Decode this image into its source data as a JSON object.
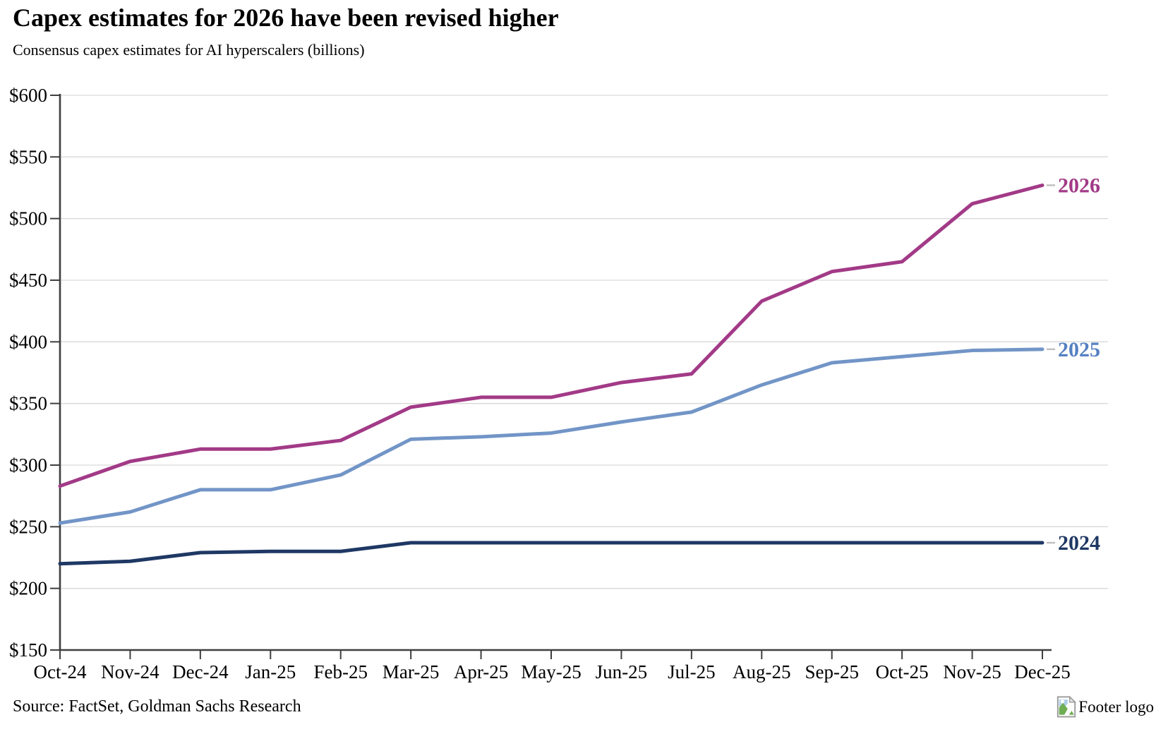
{
  "header": {
    "title": "Capex estimates for 2026 have been revised higher",
    "subtitle": "Consensus capex estimates for AI hyperscalers (billions)"
  },
  "chart_data": {
    "type": "line",
    "title": "Capex estimates for 2026 have been revised higher",
    "subtitle": "Consensus capex estimates for AI hyperscalers (billions)",
    "categories": [
      "Oct-24",
      "Nov-24",
      "Dec-24",
      "Jan-25",
      "Feb-25",
      "Mar-25",
      "Apr-25",
      "May-25",
      "Jun-25",
      "Jul-25",
      "Aug-25",
      "Sep-25",
      "Oct-25",
      "Nov-25",
      "Dec-25"
    ],
    "series": [
      {
        "name": "2026",
        "color": "#A23A87",
        "label_color": "#A23A87",
        "values": [
          283,
          303,
          313,
          313,
          320,
          347,
          355,
          355,
          367,
          374,
          433,
          457,
          465,
          512,
          527
        ]
      },
      {
        "name": "2025",
        "color": "#7295C7",
        "label_color": "#5580C2",
        "values": [
          253,
          262,
          280,
          280,
          292,
          321,
          323,
          326,
          335,
          343,
          365,
          383,
          388,
          393,
          394
        ]
      },
      {
        "name": "2024",
        "color": "#1F3864",
        "label_color": "#1F3864",
        "values": [
          220,
          222,
          229,
          230,
          230,
          237,
          237,
          237,
          237,
          237,
          237,
          237,
          237,
          237,
          237
        ]
      }
    ],
    "ylim": [
      150,
      600
    ],
    "ytick_step": 50,
    "ytick_prefix": "$",
    "ylabel": "",
    "xlabel": "",
    "grid": "horizontal",
    "legend_position": "end-of-line-labels",
    "grid_color": "#D9D9D9",
    "axis_color": "#3F3F3F",
    "leader_dash_color": "#BFBFBF"
  },
  "footer": {
    "source": "Source: FactSet, Goldman Sachs Research",
    "logo_label": "Footer logo",
    "logo_icon": "broken-image-icon"
  }
}
